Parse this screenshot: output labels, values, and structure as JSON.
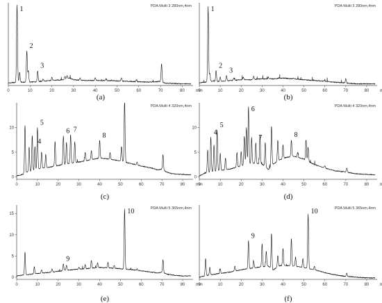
{
  "chart_data": [
    {
      "type": "line",
      "caption": "(a)",
      "method": "PDA Multi 3 280nm,4nm",
      "xlabel": "min",
      "xlim": [
        0,
        85
      ],
      "xticks": [
        0,
        10,
        20,
        30,
        40,
        50,
        60,
        70,
        80
      ],
      "ylim": [
        0,
        100
      ],
      "yticks": [],
      "baseline": [
        [
          0,
          3
        ],
        [
          5,
          4
        ],
        [
          10,
          4
        ],
        [
          15,
          5
        ],
        [
          20,
          6
        ],
        [
          25,
          7
        ],
        [
          28,
          9
        ],
        [
          30,
          7
        ],
        [
          35,
          6
        ],
        [
          40,
          6
        ],
        [
          45,
          6
        ],
        [
          50,
          5.5
        ],
        [
          55,
          5
        ],
        [
          60,
          4.5
        ],
        [
          65,
          4
        ],
        [
          70,
          5
        ],
        [
          72,
          3
        ],
        [
          75,
          2.5
        ],
        [
          80,
          2
        ],
        [
          84,
          2
        ]
      ],
      "peaks": [
        {
          "x": 4.0,
          "y": 98,
          "label": "1"
        },
        {
          "x": 5.2,
          "y": 16
        },
        {
          "x": 8.5,
          "y": 42,
          "label": "2"
        },
        {
          "x": 9.2,
          "y": 18
        },
        {
          "x": 13.5,
          "y": 18,
          "label": "3"
        },
        {
          "x": 16,
          "y": 8
        },
        {
          "x": 20,
          "y": 10
        },
        {
          "x": 26,
          "y": 11
        },
        {
          "x": 27,
          "y": 12
        },
        {
          "x": 33,
          "y": 9
        },
        {
          "x": 40,
          "y": 9
        },
        {
          "x": 45,
          "y": 8
        },
        {
          "x": 52,
          "y": 9
        },
        {
          "x": 59,
          "y": 7
        },
        {
          "x": 70.5,
          "y": 26
        }
      ]
    },
    {
      "type": "line",
      "caption": "(b)",
      "method": "PDA Multi 3 280nm,4nm",
      "xlabel": "min",
      "xlim": [
        0,
        85
      ],
      "xticks": [
        0,
        10,
        20,
        30,
        40,
        50,
        60,
        70,
        80
      ],
      "ylim": [
        0,
        100
      ],
      "yticks": [],
      "baseline": [
        [
          0,
          3
        ],
        [
          5,
          5
        ],
        [
          10,
          5
        ],
        [
          15,
          6
        ],
        [
          20,
          7
        ],
        [
          25,
          7
        ],
        [
          30,
          8
        ],
        [
          35,
          8
        ],
        [
          40,
          9
        ],
        [
          45,
          8
        ],
        [
          50,
          7
        ],
        [
          55,
          6
        ],
        [
          60,
          5
        ],
        [
          65,
          4
        ],
        [
          70,
          3
        ],
        [
          75,
          2
        ],
        [
          80,
          2
        ],
        [
          84,
          2
        ]
      ],
      "peaks": [
        {
          "x": 4.2,
          "y": 95,
          "label": "1"
        },
        {
          "x": 5.0,
          "y": 15
        },
        {
          "x": 8.0,
          "y": 18,
          "label": "2"
        },
        {
          "x": 10.0,
          "y": 10
        },
        {
          "x": 13.0,
          "y": 12,
          "label": "3"
        },
        {
          "x": 16.5,
          "y": 9
        },
        {
          "x": 21,
          "y": 10
        },
        {
          "x": 26,
          "y": 11
        },
        {
          "x": 33,
          "y": 10
        },
        {
          "x": 38,
          "y": 9
        },
        {
          "x": 45,
          "y": 9
        },
        {
          "x": 60,
          "y": 6
        },
        {
          "x": 70,
          "y": 8
        }
      ]
    },
    {
      "type": "line",
      "caption": "(c)",
      "method": "PDA Multi 4 320nm,4nm",
      "xlabel": "min",
      "xlim": [
        0,
        85
      ],
      "xticks": [
        0,
        10,
        20,
        30,
        40,
        50,
        60,
        70,
        80
      ],
      "ylim": [
        -0.5,
        15
      ],
      "yticks": [
        0,
        5,
        10
      ],
      "baseline": [
        [
          0,
          0.2
        ],
        [
          3,
          0.5
        ],
        [
          5,
          1.0
        ],
        [
          8,
          1.2
        ],
        [
          10,
          1.6
        ],
        [
          15,
          1.9
        ],
        [
          20,
          2.3
        ],
        [
          25,
          2.7
        ],
        [
          30,
          3.0
        ],
        [
          35,
          3.4
        ],
        [
          40,
          3.8
        ],
        [
          45,
          3.6
        ],
        [
          50,
          3.2
        ],
        [
          55,
          2.7
        ],
        [
          60,
          2.2
        ],
        [
          65,
          1.8
        ],
        [
          68,
          1.4
        ],
        [
          70,
          1.6
        ],
        [
          72,
          1.0
        ],
        [
          75,
          0.6
        ],
        [
          80,
          0.5
        ],
        [
          84,
          0.4
        ]
      ],
      "peaks": [
        {
          "x": 4.0,
          "y": 10.5
        },
        {
          "x": 6.0,
          "y": 6.0
        },
        {
          "x": 7.5,
          "y": 8.5
        },
        {
          "x": 8.8,
          "y": 6.2,
          "label": "4"
        },
        {
          "x": 10.0,
          "y": 10.0,
          "label": "5"
        },
        {
          "x": 12.0,
          "y": 5.0
        },
        {
          "x": 14.0,
          "y": 4.5
        },
        {
          "x": 18.5,
          "y": 7.2
        },
        {
          "x": 22.5,
          "y": 8.3,
          "label": "6"
        },
        {
          "x": 24.0,
          "y": 7.0
        },
        {
          "x": 26.0,
          "y": 8.6,
          "label": "7"
        },
        {
          "x": 28.0,
          "y": 7.2
        },
        {
          "x": 33.0,
          "y": 5.0
        },
        {
          "x": 36.0,
          "y": 5.3
        },
        {
          "x": 40.0,
          "y": 7.4,
          "label": "8"
        },
        {
          "x": 45.0,
          "y": 5.0
        },
        {
          "x": 50.5,
          "y": 6.2
        },
        {
          "x": 52.0,
          "y": 15.8
        },
        {
          "x": 58.0,
          "y": 3.0
        },
        {
          "x": 70.5,
          "y": 4.6
        }
      ]
    },
    {
      "type": "line",
      "caption": "(d)",
      "method": "PDA Multi 4 320nm,4nm",
      "xlabel": "min",
      "xlim": [
        0,
        85
      ],
      "xticks": [
        0,
        10,
        20,
        30,
        40,
        50,
        60,
        70,
        80
      ],
      "ylim": [
        -0.5,
        15
      ],
      "yticks": [
        0,
        5,
        10
      ],
      "baseline": [
        [
          0,
          0.2
        ],
        [
          3,
          0.8
        ],
        [
          5,
          1.0
        ],
        [
          10,
          1.3
        ],
        [
          15,
          1.6
        ],
        [
          20,
          2.2
        ],
        [
          25,
          2.8
        ],
        [
          30,
          2.6
        ],
        [
          33,
          1.5
        ],
        [
          35,
          2.5
        ],
        [
          40,
          3.8
        ],
        [
          45,
          4.2
        ],
        [
          50,
          3.6
        ],
        [
          55,
          2.5
        ],
        [
          60,
          1.8
        ],
        [
          65,
          1.2
        ],
        [
          70,
          1.0
        ],
        [
          75,
          0.6
        ],
        [
          80,
          0.5
        ],
        [
          84,
          0.4
        ]
      ],
      "peaks": [
        {
          "x": 4.0,
          "y": 5.5
        },
        {
          "x": 5.5,
          "y": 8.0,
          "label": "4"
        },
        {
          "x": 7.0,
          "y": 6.5
        },
        {
          "x": 8.5,
          "y": 9.5,
          "label": "5"
        },
        {
          "x": 10.0,
          "y": 4.8
        },
        {
          "x": 12.5,
          "y": 3.8
        },
        {
          "x": 18.0,
          "y": 5.0
        },
        {
          "x": 20.0,
          "y": 5.2
        },
        {
          "x": 21.5,
          "y": 8.2
        },
        {
          "x": 22.5,
          "y": 10.0
        },
        {
          "x": 23.5,
          "y": 14.2,
          "label": "6"
        },
        {
          "x": 25.0,
          "y": 8.0
        },
        {
          "x": 27.0,
          "y": 7.0,
          "label": "7"
        },
        {
          "x": 29.0,
          "y": 8.5
        },
        {
          "x": 31.5,
          "y": 7.0
        },
        {
          "x": 34.5,
          "y": 10.3
        },
        {
          "x": 37.5,
          "y": 7.5
        },
        {
          "x": 40.0,
          "y": 6.5
        },
        {
          "x": 44.0,
          "y": 7.5,
          "label": "8"
        },
        {
          "x": 47.0,
          "y": 5.0
        },
        {
          "x": 51.0,
          "y": 7.5
        },
        {
          "x": 52.0,
          "y": 6.0
        },
        {
          "x": 60.0,
          "y": 2.2
        },
        {
          "x": 70.5,
          "y": 1.8
        }
      ]
    },
    {
      "type": "line",
      "caption": "(e)",
      "method": "PDA Multi 5 365nm,4nm",
      "xlabel": "min",
      "xlim": [
        0,
        85
      ],
      "xticks": [
        0,
        10,
        20,
        30,
        40,
        50,
        60,
        70,
        80
      ],
      "ylim": [
        -0.5,
        17
      ],
      "yticks": [
        0,
        5,
        10,
        15
      ],
      "baseline": [
        [
          0,
          0.3
        ],
        [
          5,
          0.6
        ],
        [
          10,
          0.9
        ],
        [
          15,
          1.1
        ],
        [
          20,
          1.4
        ],
        [
          25,
          1.7
        ],
        [
          30,
          1.9
        ],
        [
          35,
          2.1
        ],
        [
          40,
          2.3
        ],
        [
          45,
          2.2
        ],
        [
          50,
          2.0
        ],
        [
          55,
          1.8
        ],
        [
          60,
          1.5
        ],
        [
          65,
          1.2
        ],
        [
          68,
          1.0
        ],
        [
          70,
          1.2
        ],
        [
          72,
          0.8
        ],
        [
          75,
          0.5
        ],
        [
          80,
          0.3
        ],
        [
          84,
          0.3
        ]
      ],
      "peaks": [
        {
          "x": 4.0,
          "y": 6.0
        },
        {
          "x": 8.5,
          "y": 2.5
        },
        {
          "x": 12.0,
          "y": 1.8
        },
        {
          "x": 17.0,
          "y": 2.0
        },
        {
          "x": 22.5,
          "y": 3.2,
          "label": "9"
        },
        {
          "x": 24.0,
          "y": 2.8
        },
        {
          "x": 30.0,
          "y": 2.4
        },
        {
          "x": 33.0,
          "y": 3.0
        },
        {
          "x": 36.0,
          "y": 4.0
        },
        {
          "x": 39.0,
          "y": 3.4
        },
        {
          "x": 44.0,
          "y": 3.5
        },
        {
          "x": 47.0,
          "y": 2.8
        },
        {
          "x": 52.0,
          "y": 16.0,
          "label": "10"
        },
        {
          "x": 58.0,
          "y": 2.0
        },
        {
          "x": 70.5,
          "y": 4.2
        }
      ]
    },
    {
      "type": "line",
      "caption": "(f)",
      "method": "PDA Multi 5 365nm,4nm",
      "xlabel": "min",
      "xlim": [
        0,
        85
      ],
      "xticks": [
        0,
        10,
        20,
        30,
        40,
        50,
        60,
        70,
        80
      ],
      "ylim": [
        0,
        100
      ],
      "yticks": [],
      "baseline": [
        [
          0,
          3
        ],
        [
          5,
          6
        ],
        [
          10,
          8
        ],
        [
          15,
          10
        ],
        [
          20,
          13
        ],
        [
          25,
          15
        ],
        [
          30,
          17
        ],
        [
          33,
          18
        ],
        [
          35,
          12
        ],
        [
          38,
          18
        ],
        [
          40,
          19
        ],
        [
          45,
          18
        ],
        [
          50,
          16
        ],
        [
          55,
          13
        ],
        [
          60,
          9
        ],
        [
          65,
          6
        ],
        [
          70,
          4
        ],
        [
          75,
          3
        ],
        [
          80,
          2
        ],
        [
          84,
          2
        ]
      ],
      "peaks": [
        {
          "x": 3.0,
          "y": 28
        },
        {
          "x": 5.0,
          "y": 16
        },
        {
          "x": 10.0,
          "y": 14
        },
        {
          "x": 17.0,
          "y": 18
        },
        {
          "x": 23.5,
          "y": 52,
          "label": "9"
        },
        {
          "x": 26.0,
          "y": 24
        },
        {
          "x": 30.0,
          "y": 48
        },
        {
          "x": 32.0,
          "y": 38
        },
        {
          "x": 34.5,
          "y": 62
        },
        {
          "x": 37.5,
          "y": 32
        },
        {
          "x": 40.0,
          "y": 42
        },
        {
          "x": 44.0,
          "y": 55
        },
        {
          "x": 46.0,
          "y": 30
        },
        {
          "x": 49.5,
          "y": 28
        },
        {
          "x": 52.0,
          "y": 88,
          "label": "10"
        },
        {
          "x": 55.0,
          "y": 18
        },
        {
          "x": 70.5,
          "y": 8
        }
      ]
    }
  ]
}
